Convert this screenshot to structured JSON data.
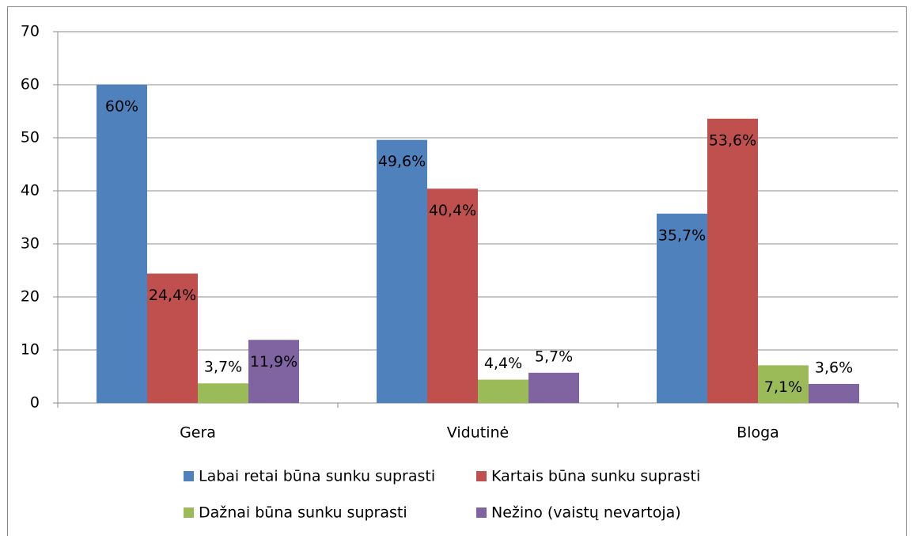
{
  "chart_data": {
    "type": "bar",
    "categories": [
      "Gera",
      "Vidutinė",
      "Bloga"
    ],
    "series": [
      {
        "name": "Labai retai būna sunku suprasti",
        "color": "#4f81bd",
        "values": [
          60,
          49.6,
          35.7
        ],
        "value_labels": [
          "60%",
          "49,6%",
          "35,7%"
        ]
      },
      {
        "name": "Kartais būna sunku suprasti",
        "color": "#c0504d",
        "values": [
          24.4,
          40.4,
          53.6
        ],
        "value_labels": [
          "24,4%",
          "40,4%",
          "53,6%"
        ]
      },
      {
        "name": "Dažnai būna sunku suprasti",
        "color": "#9bbb59",
        "values": [
          3.7,
          4.4,
          7.1
        ],
        "value_labels": [
          "3,7%",
          "4,4%",
          "7,1%"
        ]
      },
      {
        "name": "Nežino (vaistų nevartoja)",
        "color": "#8064a2",
        "values": [
          11.9,
          5.7,
          3.6
        ],
        "value_labels": [
          "11,9%",
          "5,7%",
          "3,6%"
        ]
      }
    ],
    "ylim": [
      0,
      70
    ],
    "yticks": [
      0,
      10,
      20,
      30,
      40,
      50,
      60,
      70
    ],
    "grid": true,
    "legend": "bottom"
  }
}
